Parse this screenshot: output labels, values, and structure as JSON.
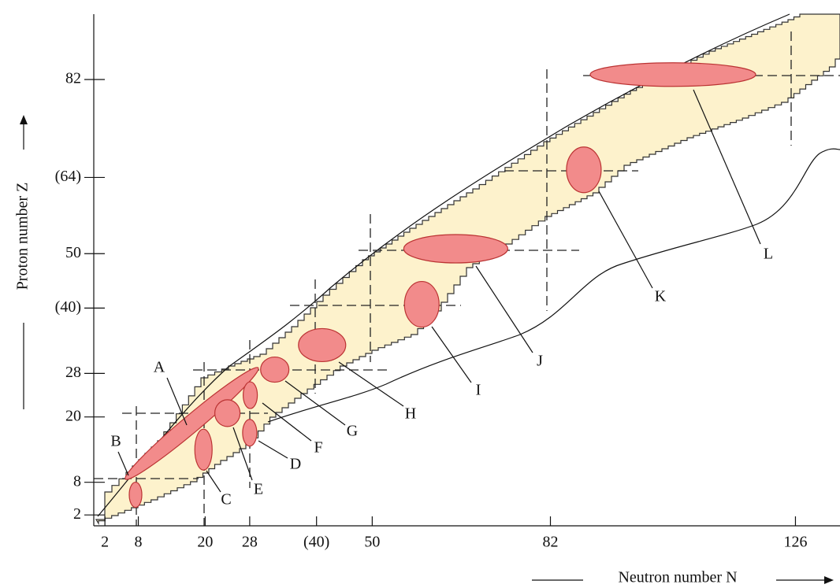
{
  "chart_data": {
    "type": "region-map",
    "x_label": "Neutron number N",
    "y_label": "Proton number Z",
    "xlim": [
      0,
      134
    ],
    "ylim": [
      0,
      94
    ],
    "xticks": [
      2,
      8,
      20,
      28,
      {
        "value": 40,
        "label": "(40)"
      },
      50,
      82,
      126
    ],
    "yticks": [
      2,
      8,
      20,
      28,
      {
        "value": 40,
        "label": "(40)"
      },
      50,
      {
        "value": 64,
        "label": "(64)"
      },
      82
    ],
    "region_color": "#f28b8b",
    "band_color": "#fdf2cc",
    "regions": [
      {
        "label": "A",
        "n": 17.6,
        "z": 18.8
      },
      {
        "label": "B",
        "n": 7.5,
        "z": 5.7
      },
      {
        "label": "C",
        "n": 19.7,
        "z": 14
      },
      {
        "label": "D",
        "n": 28,
        "z": 17.1
      },
      {
        "label": "E",
        "n": 24,
        "z": 20.7
      },
      {
        "label": "F",
        "n": 28.1,
        "z": 24
      },
      {
        "label": "G",
        "n": 32.5,
        "z": 28.7
      },
      {
        "label": "H",
        "n": 41,
        "z": 33.2
      },
      {
        "label": "I",
        "n": 58.9,
        "z": 40.7
      },
      {
        "label": "J",
        "n": 65,
        "z": 50.9
      },
      {
        "label": "K",
        "n": 88,
        "z": 65.4
      },
      {
        "label": "L",
        "n": 104,
        "z": 82.9
      }
    ]
  }
}
